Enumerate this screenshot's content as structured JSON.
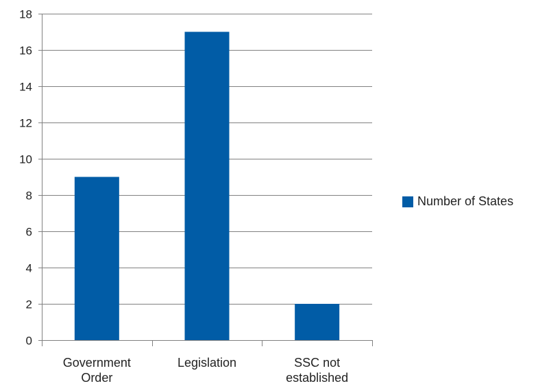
{
  "chart_data": {
    "type": "bar",
    "title": "",
    "xlabel": "",
    "ylabel": "",
    "categories": [
      [
        "Government",
        "Order"
      ],
      [
        "Legislation"
      ],
      [
        "SSC not",
        "established"
      ]
    ],
    "series": [
      {
        "name": "Number of States",
        "values": [
          9,
          17,
          2
        ],
        "color": "#015ca6"
      }
    ],
    "ylim": [
      0,
      18
    ],
    "yticks": [
      0,
      2,
      4,
      6,
      8,
      10,
      12,
      14,
      16,
      18
    ],
    "grid": true,
    "legend_position": "right"
  },
  "colors": {
    "bar": "#015ca6",
    "gridline": "#808080",
    "axis": "#808080",
    "text": "#222222"
  }
}
